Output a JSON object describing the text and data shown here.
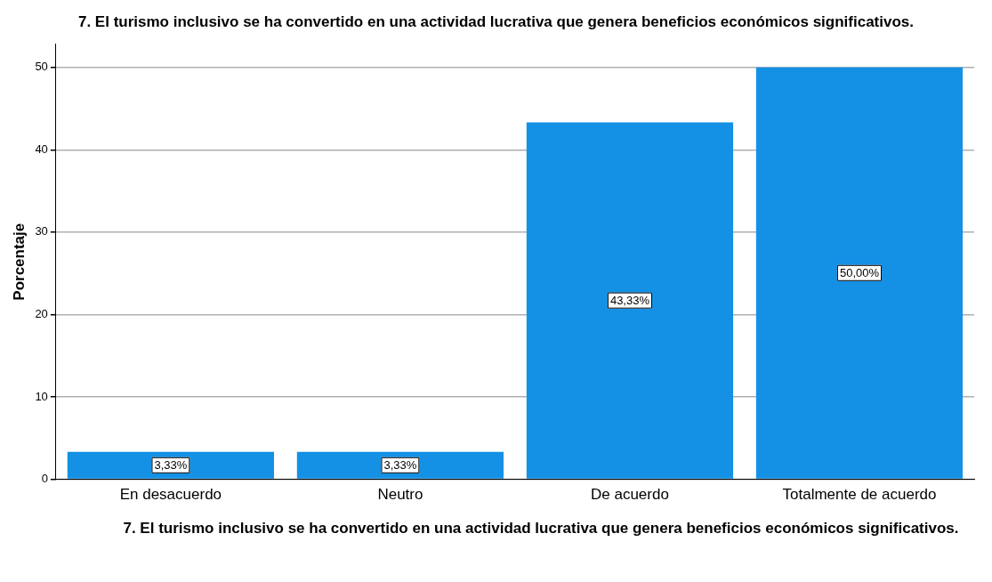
{
  "chart_data": {
    "type": "bar",
    "title": "7. El turismo inclusivo se ha convertido en una actividad lucrativa que genera beneficios económicos significativos.",
    "xlabel": "7. El turismo inclusivo se ha convertido en una actividad lucrativa que genera beneficios económicos significativos.",
    "ylabel": "Porcentaje",
    "categories": [
      "En desacuerdo",
      "Neutro",
      "De acuerdo",
      "Totalmente de acuerdo"
    ],
    "values": [
      3.33,
      3.33,
      43.33,
      50
    ],
    "value_labels": [
      "3,33%",
      "3,33%",
      "43,33%",
      "50,00%"
    ],
    "color": "#1491e5",
    "ylim": [
      0,
      52.8
    ],
    "yticks": [
      0,
      10,
      20,
      30,
      40,
      50
    ],
    "grid": "y",
    "legend": false
  }
}
